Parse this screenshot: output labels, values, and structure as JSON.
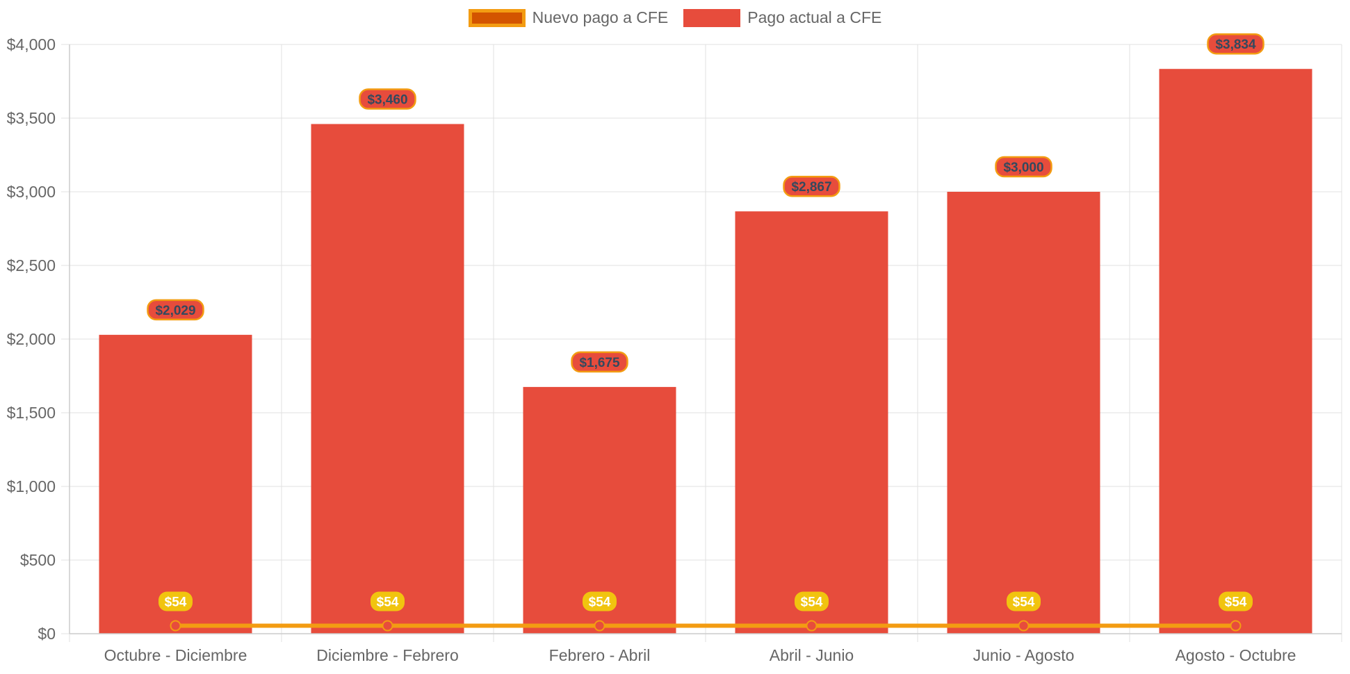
{
  "legend": {
    "line_label": "Nuevo pago a CFE",
    "bar_label": "Pago actual a CFE"
  },
  "colors": {
    "bar": "#e74c3c",
    "line": "#f39c12",
    "line_fill": "#d35400",
    "point": "#e74c3c",
    "bar_label_text": "#34495e",
    "line_label_bg": "#f1c40f",
    "line_label_text": "#ffffff",
    "grid": "#e0e0e0",
    "tick_text": "#666666"
  },
  "chart_data": {
    "type": "bar",
    "categories": [
      "Octubre - Diciembre",
      "Diciembre - Febrero",
      "Febrero - Abril",
      "Abril - Junio",
      "Junio - Agosto",
      "Agosto - Octubre"
    ],
    "series": [
      {
        "name": "Pago actual a CFE",
        "type": "bar",
        "values": [
          2029,
          3460,
          1675,
          2867,
          3000,
          3834
        ],
        "labels": [
          "$2,029",
          "$3,460",
          "$1,675",
          "$2,867",
          "$3,000",
          "$3,834"
        ]
      },
      {
        "name": "Nuevo pago a CFE",
        "type": "line",
        "values": [
          54,
          54,
          54,
          54,
          54,
          54
        ],
        "labels": [
          "$54",
          "$54",
          "$54",
          "$54",
          "$54",
          "$54"
        ]
      }
    ],
    "ylim": [
      0,
      4000
    ],
    "yticks": [
      0,
      500,
      1000,
      1500,
      2000,
      2500,
      3000,
      3500,
      4000
    ],
    "ytick_labels": [
      "$0",
      "$500",
      "$1,000",
      "$1,500",
      "$2,000",
      "$2,500",
      "$3,000",
      "$3,500",
      "$4,000"
    ],
    "grid": true,
    "legend_position": "top-center",
    "title": "",
    "xlabel": "",
    "ylabel": ""
  }
}
